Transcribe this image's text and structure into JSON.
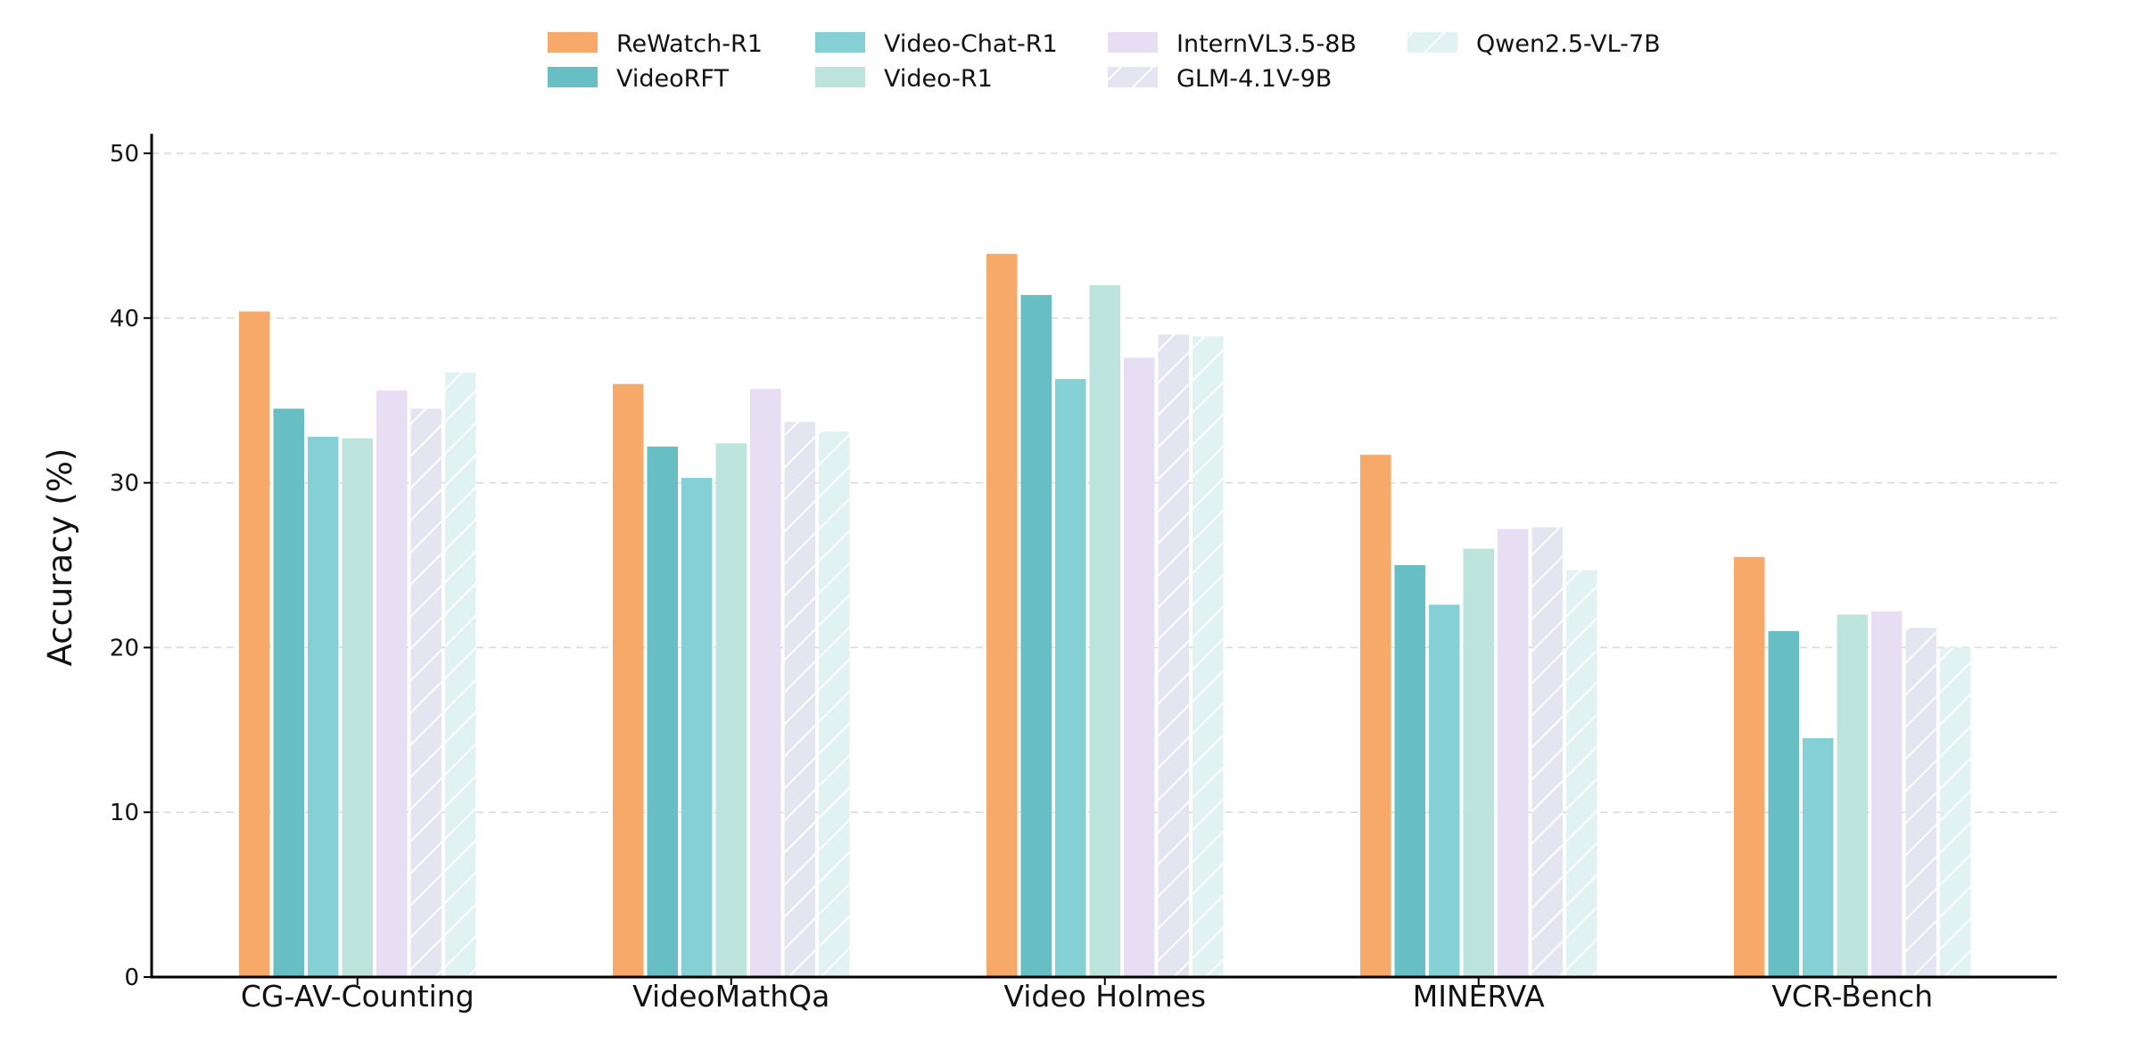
{
  "chart_data": {
    "type": "bar",
    "title": "",
    "xlabel": "",
    "ylabel": "Accuracy (%)",
    "ylim": [
      0,
      50
    ],
    "yticks": [
      0,
      10,
      20,
      30,
      40,
      50
    ],
    "grid": true,
    "legend_position": "top-center",
    "categories": [
      "CG-AV-Counting",
      "VideoMathQa",
      "Video Holmes",
      "MINERVA",
      "VCR-Bench"
    ],
    "series": [
      {
        "name": "ReWatch-R1",
        "color": "#f7a96a",
        "hatch": false,
        "values": [
          40.4,
          36.0,
          43.9,
          31.7,
          25.5
        ]
      },
      {
        "name": "VideoRFT",
        "color": "#67bfc4",
        "hatch": false,
        "values": [
          34.5,
          32.2,
          41.4,
          25.0,
          21.0
        ]
      },
      {
        "name": "Video-Chat-R1",
        "color": "#84d0d5",
        "hatch": false,
        "values": [
          32.8,
          30.3,
          36.3,
          22.6,
          14.5
        ]
      },
      {
        "name": "Video-R1",
        "color": "#bce4dd",
        "hatch": false,
        "values": [
          32.7,
          32.4,
          42.0,
          26.0,
          22.0
        ]
      },
      {
        "name": "InternVL3.5-8B",
        "color": "#e8def4",
        "hatch": false,
        "values": [
          35.6,
          35.7,
          37.6,
          27.2,
          22.2
        ]
      },
      {
        "name": "GLM-4.1V-9B",
        "color": "#e4e5f0",
        "hatch": true,
        "values": [
          34.5,
          33.7,
          39.0,
          27.3,
          21.2
        ]
      },
      {
        "name": "Qwen2.5-VL-7B",
        "color": "#e1f2f2",
        "hatch": true,
        "values": [
          36.7,
          33.1,
          38.9,
          24.7,
          20.0
        ]
      }
    ]
  }
}
